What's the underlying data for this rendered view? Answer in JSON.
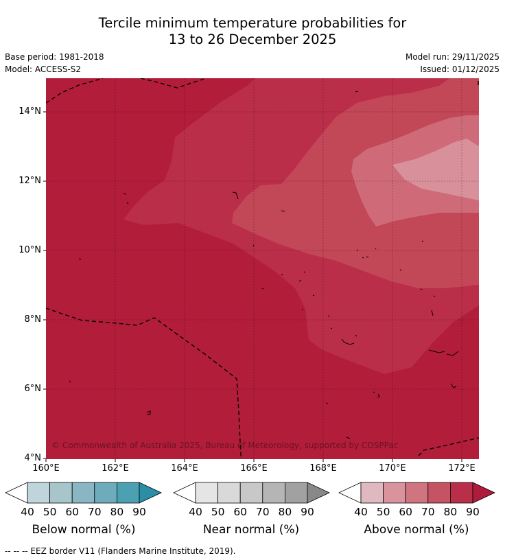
{
  "title": {
    "line1": "Tercile minimum temperature probabilities for",
    "line2": "13 to 26 December 2025"
  },
  "meta": {
    "base_period": "Base period: 1981-2018",
    "model": "Model: ACCESS-S2",
    "model_run": "Model run: 29/11/2025",
    "issued": "Issued: 01/12/2025"
  },
  "map": {
    "lat_labels": [
      "14°N",
      "12°N",
      "10°N",
      "8°N",
      "6°N",
      "4°N"
    ],
    "lon_labels": [
      "160°E",
      "162°E",
      "164°E",
      "166°E",
      "168°E",
      "170°E",
      "172°E"
    ],
    "copyright": "© Commonwealth of Australia 2025, Bureau of Meteorology, supported by COSPPac",
    "colors": {
      "above_80_90": "#b21d3a",
      "above_70_80": "#ba2e49",
      "above_60_70": "#c24757",
      "above_50_60": "#cf6b78",
      "above_40_50": "#d8919a"
    }
  },
  "legend": {
    "ticks": [
      "40",
      "50",
      "60",
      "70",
      "80",
      "90"
    ],
    "below": {
      "title": "Below normal (%)",
      "colors": [
        "#c0d5db",
        "#a6c6cc",
        "#89b6c2",
        "#6eacbc",
        "#4ba0b2",
        "#2a8fa6"
      ]
    },
    "near": {
      "title": "Near normal (%)",
      "colors": [
        "#e5e5e5",
        "#d9d9d9",
        "#c8c8c8",
        "#b5b5b5",
        "#a1a1a1",
        "#888888"
      ]
    },
    "above": {
      "title": "Above normal (%)",
      "colors": [
        "#e0b8bf",
        "#d8939d",
        "#d07480",
        "#c65363",
        "#b92e49",
        "#ae1b3b"
      ]
    }
  },
  "footnote": "-- -- -- EEZ border V11 (Flanders Marine Institute, 2019)."
}
